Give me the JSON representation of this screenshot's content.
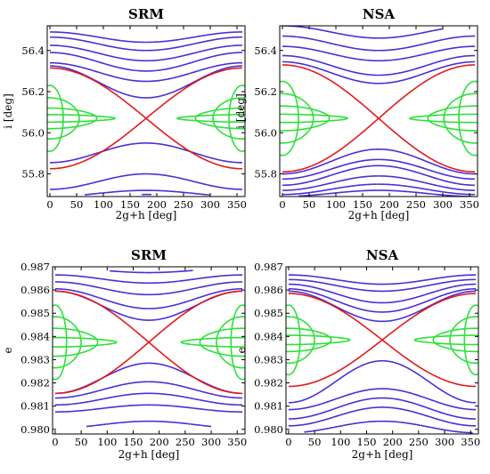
{
  "colors": {
    "circulating": "#4b2fd6",
    "separatrix": "#e31a1c",
    "librating": "#2ee03a",
    "background": "#ffffff"
  },
  "chart_data": [
    {
      "type": "line",
      "title": "SRM",
      "xlabel": "2g+h [deg]",
      "ylabel": "i [deg]",
      "xlim": [
        -5,
        365
      ],
      "ylim": [
        55.69,
        56.52
      ],
      "xticks": [
        0,
        50,
        100,
        150,
        200,
        250,
        300,
        350
      ],
      "xtick_labels": [
        "0",
        "50",
        "100",
        "150",
        "200",
        "250",
        "300",
        "350"
      ],
      "yticks": [
        55.8,
        56.0,
        56.2,
        56.4
      ],
      "ytick_labels": [
        "55.8",
        "56.0",
        "56.2",
        "56.4"
      ],
      "grid": false,
      "center": 56.07,
      "separatrix_edge": 0.245,
      "circulating_above": [
        {
          "edge": 56.49,
          "mid": 56.44
        },
        {
          "edge": 56.465,
          "mid": 56.4
        },
        {
          "edge": 56.425,
          "mid": 56.35
        },
        {
          "edge": 56.39,
          "mid": 56.3
        },
        {
          "edge": 56.34,
          "mid": 56.25
        },
        {
          "edge": 56.325,
          "mid": 56.17
        }
      ],
      "circulating_below": [
        {
          "edge": 55.855,
          "mid": 55.95
        },
        {
          "edge": 55.725,
          "mid": 55.8
        },
        {
          "edge": 55.69,
          "mid": 55.72,
          "xrange": [
            65,
            300
          ]
        },
        {
          "edge": 55.7,
          "mid": 55.7,
          "xrange": [
            172,
            190
          ]
        }
      ],
      "librating": [
        {
          "a": 0.225,
          "x0": 0
        },
        {
          "a": 0.16,
          "x0": 25
        },
        {
          "a": 0.1,
          "x0": 55
        },
        {
          "a": 0.05,
          "x0": 88
        },
        {
          "a": 0.018,
          "x0": 122
        }
      ]
    },
    {
      "type": "line",
      "title": "NSA",
      "xlabel": "2g+h [deg]",
      "ylabel": "i [deg]",
      "xlim": [
        -5,
        365
      ],
      "ylim": [
        55.69,
        56.52
      ],
      "xticks": [
        0,
        50,
        100,
        150,
        200,
        250,
        300,
        350
      ],
      "xtick_labels": [
        "0",
        "50",
        "100",
        "150",
        "200",
        "250",
        "300",
        "350"
      ],
      "yticks": [
        55.8,
        56.0,
        56.2,
        56.4
      ],
      "ytick_labels": [
        "55.8",
        "56.0",
        "56.2",
        "56.4"
      ],
      "grid": false,
      "center": 56.07,
      "separatrix_edge": 0.26,
      "circulating_above": [
        {
          "edge": 56.52,
          "mid": 56.46,
          "xrange": [
            0,
            300
          ]
        },
        {
          "edge": 56.47,
          "mid": 56.4
        },
        {
          "edge": 56.42,
          "mid": 56.35
        },
        {
          "edge": 56.375,
          "mid": 56.28
        },
        {
          "edge": 56.345,
          "mid": 56.24
        }
      ],
      "circulating_below": [
        {
          "edge": 55.8,
          "mid": 55.92
        },
        {
          "edge": 55.775,
          "mid": 55.87
        },
        {
          "edge": 55.745,
          "mid": 55.84
        },
        {
          "edge": 55.72,
          "mid": 55.79
        },
        {
          "edge": 55.7,
          "mid": 55.75
        },
        {
          "edge": 55.69,
          "mid": 55.72,
          "xrange": [
            30,
            355
          ]
        }
      ],
      "librating": [
        {
          "a": 0.235,
          "x0": 0
        },
        {
          "a": 0.18,
          "x0": 30
        },
        {
          "a": 0.12,
          "x0": 58
        },
        {
          "a": 0.06,
          "x0": 88
        },
        {
          "a": 0.02,
          "x0": 122
        }
      ]
    },
    {
      "type": "line",
      "title": "SRM",
      "xlabel": "2g+h [deg]",
      "ylabel": "e",
      "xlim": [
        -5,
        365
      ],
      "ylim": [
        0.9798,
        0.987
      ],
      "xticks": [
        0,
        50,
        100,
        150,
        200,
        250,
        300,
        350
      ],
      "xtick_labels": [
        "0",
        "50",
        "100",
        "150",
        "200",
        "250",
        "300",
        "350"
      ],
      "yticks": [
        0.98,
        0.981,
        0.982,
        0.983,
        0.984,
        0.985,
        0.986,
        0.987
      ],
      "ytick_labels": [
        "0.980",
        "0.981",
        "0.982",
        "0.983",
        "0.984",
        "0.985",
        "0.986",
        "0.987"
      ],
      "grid": false,
      "center": 0.98375,
      "separatrix_edge": 0.0022,
      "circulating_above": [
        {
          "edge": 0.98695,
          "mid": 0.98675,
          "xrange": [
            105,
            265
          ]
        },
        {
          "edge": 0.98665,
          "mid": 0.9863
        },
        {
          "edge": 0.98635,
          "mid": 0.9858
        },
        {
          "edge": 0.98605,
          "mid": 0.9852
        },
        {
          "edge": 0.98595,
          "mid": 0.9847
        }
      ],
      "circulating_below": [
        {
          "edge": 0.98155,
          "mid": 0.98285
        },
        {
          "edge": 0.98135,
          "mid": 0.98205
        },
        {
          "edge": 0.98105,
          "mid": 0.98155
        },
        {
          "edge": 0.98075,
          "mid": 0.98105
        },
        {
          "edge": 0.98005,
          "mid": 0.98035,
          "xrange": [
            60,
            300
          ]
        }
      ],
      "librating": [
        {
          "a": 0.0021,
          "x0": 0
        },
        {
          "a": 0.0016,
          "x0": 22
        },
        {
          "a": 0.0011,
          "x0": 50
        },
        {
          "a": 0.0006,
          "x0": 82
        },
        {
          "a": 0.0002,
          "x0": 118
        }
      ]
    },
    {
      "type": "line",
      "title": "NSA",
      "xlabel": "2g+h [deg]",
      "ylabel": "e",
      "xlim": [
        -5,
        365
      ],
      "ylim": [
        0.9798,
        0.987
      ],
      "xticks": [
        0,
        50,
        100,
        150,
        200,
        250,
        300,
        350
      ],
      "xtick_labels": [
        "0",
        "50",
        "100",
        "150",
        "200",
        "250",
        "300",
        "350"
      ],
      "yticks": [
        0.98,
        0.981,
        0.982,
        0.983,
        0.984,
        0.985,
        0.986,
        0.987
      ],
      "ytick_labels": [
        "0.980",
        "0.981",
        "0.982",
        "0.983",
        "0.984",
        "0.985",
        "0.986",
        "0.987"
      ],
      "grid": false,
      "center": 0.98385,
      "separatrix_edge": 0.002,
      "circulating_above": [
        {
          "edge": 0.98665,
          "mid": 0.98625
        },
        {
          "edge": 0.98645,
          "mid": 0.98595
        },
        {
          "edge": 0.98625,
          "mid": 0.98545
        },
        {
          "edge": 0.98605,
          "mid": 0.98505
        },
        {
          "edge": 0.98595,
          "mid": 0.98465
        }
      ],
      "circulating_below": [
        {
          "edge": 0.98115,
          "mid": 0.98295
        },
        {
          "edge": 0.98085,
          "mid": 0.98175
        },
        {
          "edge": 0.98045,
          "mid": 0.98135
        },
        {
          "edge": 0.98015,
          "mid": 0.98095
        },
        {
          "edge": 0.97985,
          "mid": 0.98035,
          "xrange": [
            30,
            355
          ]
        }
      ],
      "librating": [
        {
          "a": 0.00195,
          "x0": 0
        },
        {
          "a": 0.0015,
          "x0": 22
        },
        {
          "a": 0.001,
          "x0": 50
        },
        {
          "a": 0.0005,
          "x0": 82
        },
        {
          "a": 0.0002,
          "x0": 118
        }
      ]
    }
  ]
}
